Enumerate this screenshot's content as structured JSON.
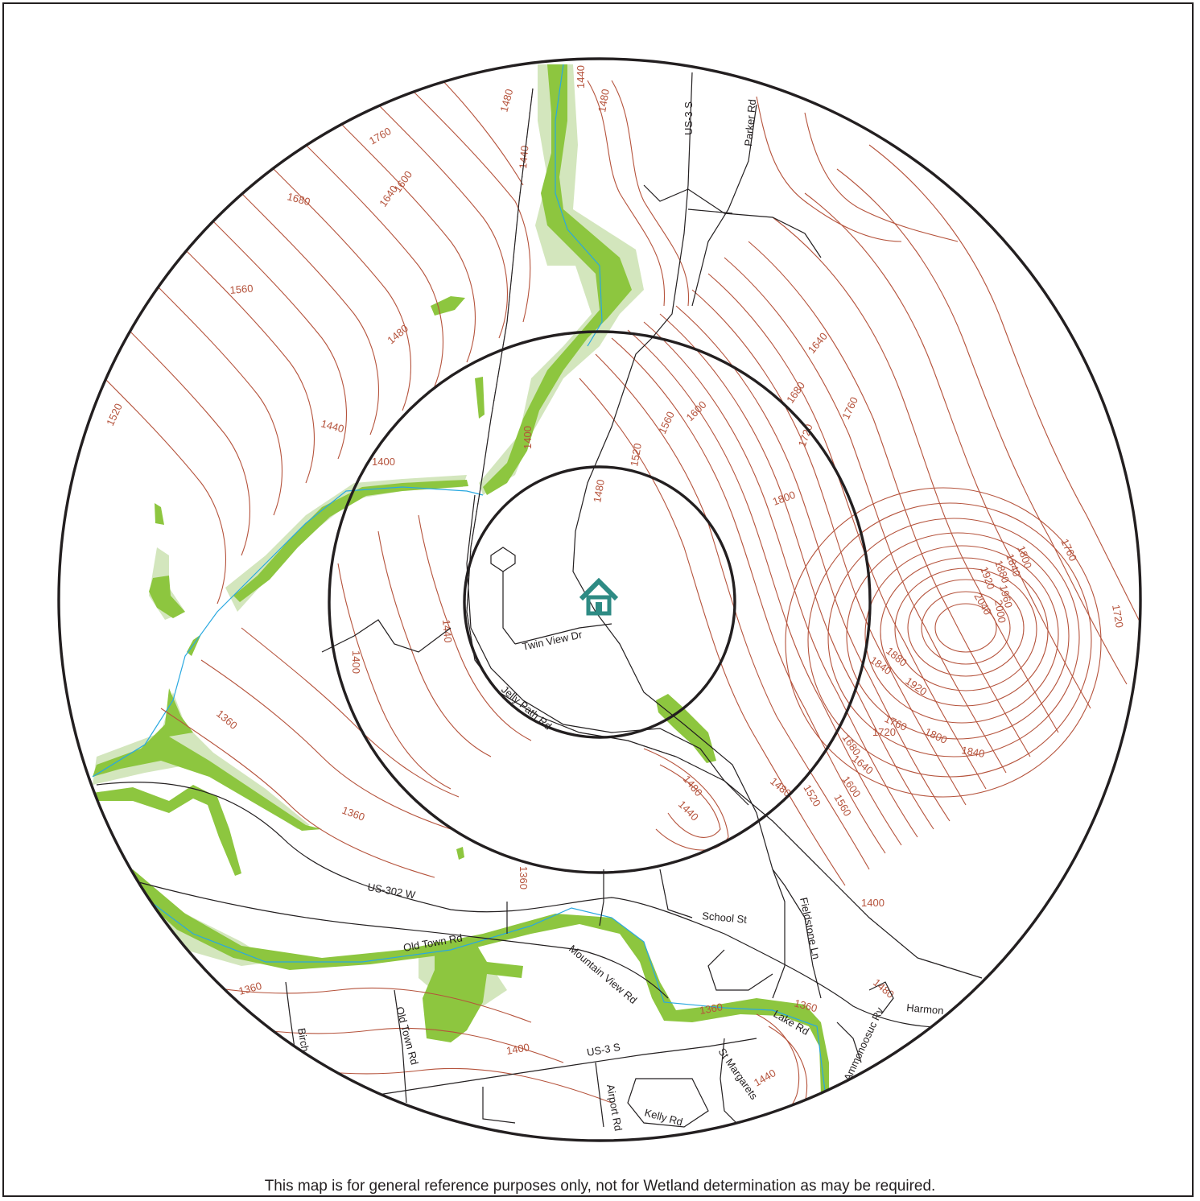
{
  "disclaimer": "This map is for general reference purposes only, not for Wetland determination as may be required.",
  "contour_labels": [
    {
      "text": "1440"
    },
    {
      "text": "1480"
    },
    {
      "text": "1480"
    },
    {
      "text": "1440"
    },
    {
      "text": "1760"
    },
    {
      "text": "1680"
    },
    {
      "text": "1640"
    },
    {
      "text": "1600"
    },
    {
      "text": "1560"
    },
    {
      "text": "1480"
    },
    {
      "text": "1520"
    },
    {
      "text": "1440"
    },
    {
      "text": "1400"
    },
    {
      "text": "1400"
    },
    {
      "text": "1440"
    },
    {
      "text": "1480"
    },
    {
      "text": "1520"
    },
    {
      "text": "1560"
    },
    {
      "text": "1600"
    },
    {
      "text": "1640"
    },
    {
      "text": "1680"
    },
    {
      "text": "1720"
    },
    {
      "text": "1760"
    },
    {
      "text": "1800"
    },
    {
      "text": "1800"
    },
    {
      "text": "1840"
    },
    {
      "text": "1880"
    },
    {
      "text": "1920"
    },
    {
      "text": "1960"
    },
    {
      "text": "2000"
    },
    {
      "text": "2040"
    },
    {
      "text": "1720"
    },
    {
      "text": "1760"
    },
    {
      "text": "1840"
    },
    {
      "text": "1880"
    },
    {
      "text": "1920"
    },
    {
      "text": "1760"
    },
    {
      "text": "1720"
    },
    {
      "text": "1800"
    },
    {
      "text": "1840"
    },
    {
      "text": "1680"
    },
    {
      "text": "1640"
    },
    {
      "text": "1600"
    },
    {
      "text": "1560"
    },
    {
      "text": "1520"
    },
    {
      "text": "1480"
    },
    {
      "text": "1480"
    },
    {
      "text": "1440"
    },
    {
      "text": "1400"
    },
    {
      "text": "1360"
    },
    {
      "text": "1360"
    },
    {
      "text": "1360"
    },
    {
      "text": "1360"
    },
    {
      "text": "1360"
    },
    {
      "text": "1400"
    },
    {
      "text": "1440"
    },
    {
      "text": "1480"
    },
    {
      "text": "1400"
    },
    {
      "text": "1360"
    }
  ],
  "road_labels": [
    {
      "text": "US-3 S"
    },
    {
      "text": "Parker Rd"
    },
    {
      "text": "Twin View Dr"
    },
    {
      "text": "Jelly Path Rd"
    },
    {
      "text": "US-302 W"
    },
    {
      "text": "School St"
    },
    {
      "text": "Fieldstone Ln"
    },
    {
      "text": "Old Town Rd"
    },
    {
      "text": "Mountain View Rd"
    },
    {
      "text": "Lake Rd"
    },
    {
      "text": "Harmon"
    },
    {
      "text": "Ammonoosuc Rv"
    },
    {
      "text": "Birch"
    },
    {
      "text": "Old Town Rd"
    },
    {
      "text": "US-3 S"
    },
    {
      "text": "Airport Rd"
    },
    {
      "text": "Kelly Rd"
    },
    {
      "text": "St Margarets"
    }
  ],
  "colors": {
    "contour": "#b5533c",
    "wetland": "#8dc63f",
    "wetland_pale": "#d3e6bd",
    "stream": "#29a8e0",
    "ring": "#231f20",
    "site_marker": "#2e8b84"
  },
  "site_marker_icon": "house-icon"
}
